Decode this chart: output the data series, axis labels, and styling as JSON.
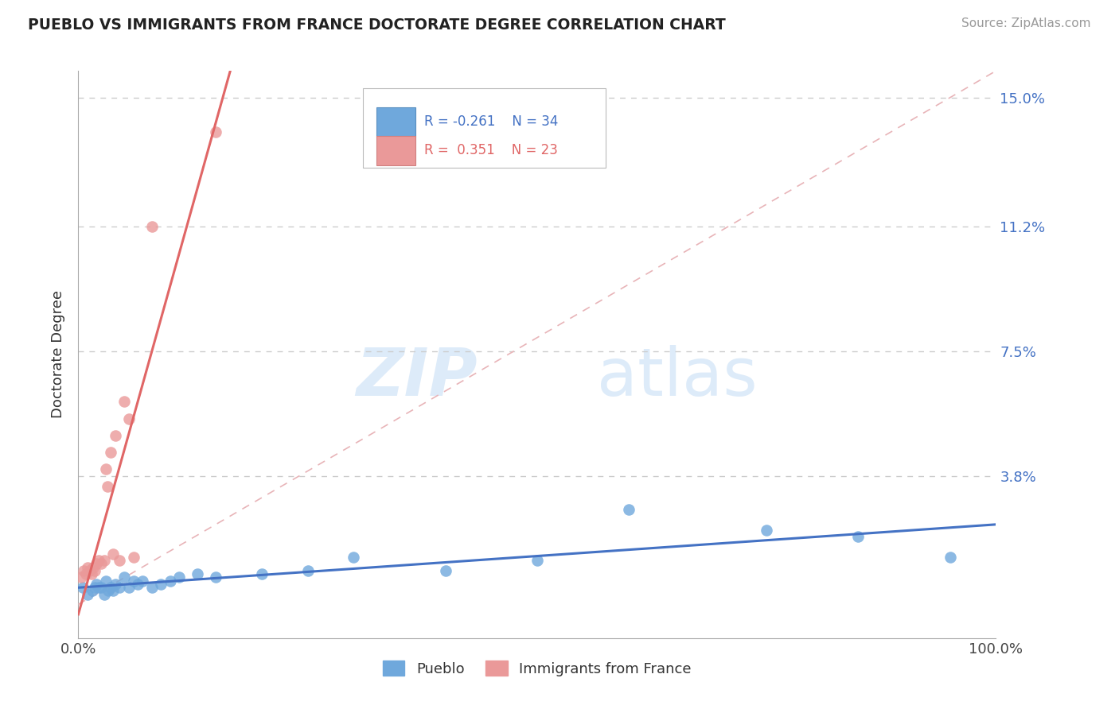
{
  "title": "PUEBLO VS IMMIGRANTS FROM FRANCE DOCTORATE DEGREE CORRELATION CHART",
  "source": "Source: ZipAtlas.com",
  "ylabel": "Doctorate Degree",
  "yticks": [
    0.0,
    0.038,
    0.075,
    0.112,
    0.15
  ],
  "ytick_labels": [
    "",
    "3.8%",
    "7.5%",
    "11.2%",
    "15.0%"
  ],
  "xmin": 0.0,
  "xmax": 1.0,
  "ymin": -0.01,
  "ymax": 0.158,
  "pueblo_color": "#6fa8dc",
  "france_color": "#ea9999",
  "pueblo_line_color": "#4472c4",
  "france_line_color": "#e06666",
  "tick_color": "#4472c4",
  "watermark_zip": "ZIP",
  "watermark_atlas": "atlas",
  "pueblo_scatter_x": [
    0.005,
    0.01,
    0.015,
    0.018,
    0.02,
    0.022,
    0.025,
    0.028,
    0.03,
    0.033,
    0.035,
    0.038,
    0.04,
    0.045,
    0.05,
    0.055,
    0.06,
    0.065,
    0.07,
    0.08,
    0.09,
    0.1,
    0.11,
    0.13,
    0.15,
    0.2,
    0.25,
    0.3,
    0.4,
    0.5,
    0.6,
    0.75,
    0.85,
    0.95
  ],
  "pueblo_scatter_y": [
    0.005,
    0.003,
    0.004,
    0.005,
    0.006,
    0.005,
    0.005,
    0.003,
    0.007,
    0.004,
    0.005,
    0.004,
    0.006,
    0.005,
    0.008,
    0.005,
    0.007,
    0.006,
    0.007,
    0.005,
    0.006,
    0.007,
    0.008,
    0.009,
    0.008,
    0.009,
    0.01,
    0.014,
    0.01,
    0.013,
    0.028,
    0.022,
    0.02,
    0.014
  ],
  "france_scatter_x": [
    0.003,
    0.006,
    0.008,
    0.01,
    0.012,
    0.014,
    0.016,
    0.018,
    0.02,
    0.022,
    0.025,
    0.028,
    0.03,
    0.032,
    0.035,
    0.038,
    0.04,
    0.045,
    0.05,
    0.055,
    0.06,
    0.08,
    0.15
  ],
  "france_scatter_y": [
    0.008,
    0.01,
    0.009,
    0.011,
    0.01,
    0.009,
    0.011,
    0.01,
    0.012,
    0.013,
    0.012,
    0.013,
    0.04,
    0.035,
    0.045,
    0.015,
    0.05,
    0.013,
    0.06,
    0.055,
    0.014,
    0.112,
    0.14
  ],
  "france_line_xmin": 0.0,
  "france_line_xmax": 0.18,
  "diag_line_color": "#dddddd"
}
